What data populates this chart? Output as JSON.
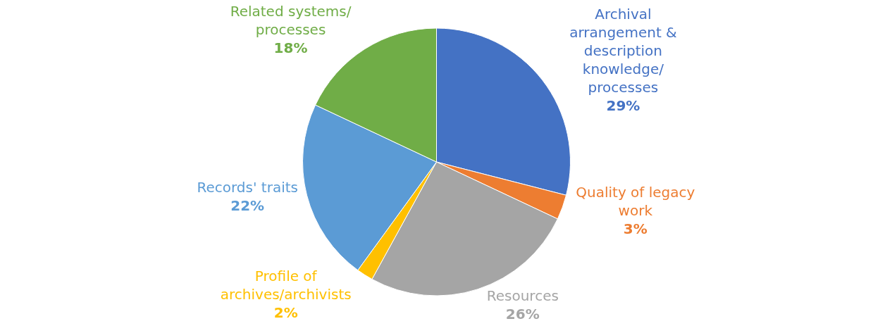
{
  "chart_data": {
    "type": "pie",
    "categories": [
      "Archival arrangement & description knowledge/ processes",
      "Quality of legacy work",
      "Resources",
      "Profile of archives/archivists",
      "Records' traits",
      "Related systems/ processes"
    ],
    "values": [
      29,
      3,
      26,
      2,
      22,
      18
    ],
    "value_labels": [
      "29%",
      "3%",
      "26%",
      "2%",
      "22%",
      "18%"
    ],
    "colors": [
      "#4472c4",
      "#ed7d31",
      "#a5a5a5",
      "#ffc000",
      "#5b9bd5",
      "#70ad47"
    ],
    "legend": false
  }
}
